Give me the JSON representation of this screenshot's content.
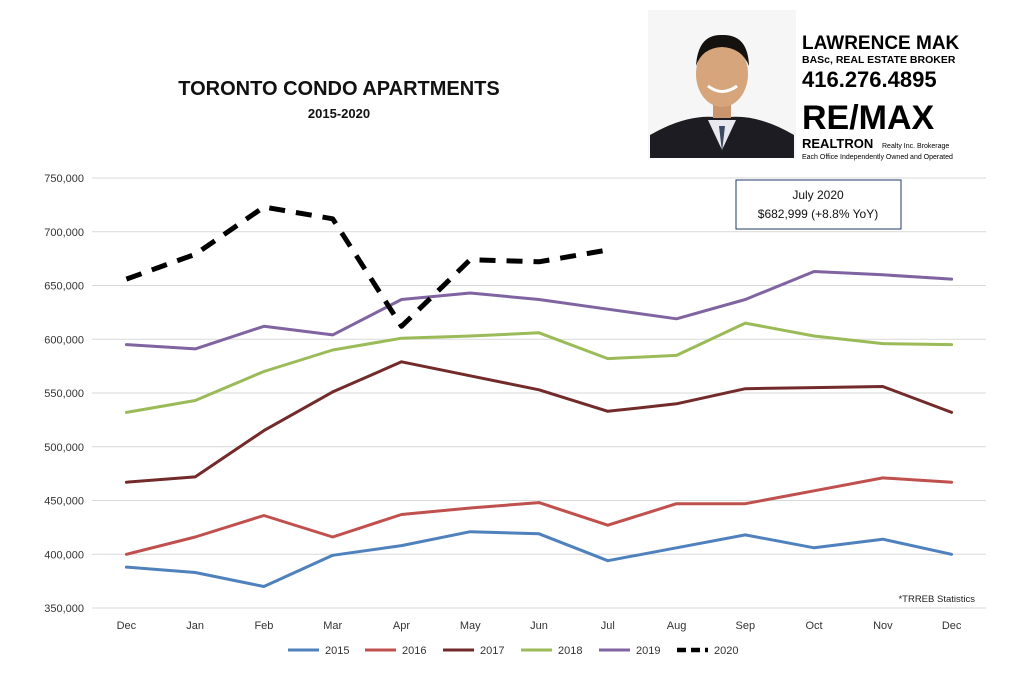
{
  "chart_data": {
    "type": "line",
    "title": "TORONTO CONDO APARTMENTS",
    "subtitle": "2015-2020",
    "categories": [
      "Dec",
      "Jan",
      "Feb",
      "Mar",
      "Apr",
      "May",
      "Jun",
      "Jul",
      "Aug",
      "Sep",
      "Oct",
      "Nov",
      "Dec"
    ],
    "ylim": [
      350000,
      750000
    ],
    "yticks": [
      "350,000",
      "400,000",
      "450,000",
      "500,000",
      "550,000",
      "600,000",
      "650,000",
      "700,000",
      "750,000"
    ],
    "grid": true,
    "legend_position": "bottom",
    "series": [
      {
        "name": "2015",
        "color": "#4f81bd",
        "dashed": false,
        "values": [
          388000,
          383000,
          370000,
          399000,
          408000,
          421000,
          419000,
          394000,
          406000,
          418000,
          406000,
          414000,
          400000
        ]
      },
      {
        "name": "2016",
        "color": "#c0504d",
        "dashed": false,
        "values": [
          400000,
          416000,
          436000,
          416000,
          437000,
          443000,
          448000,
          427000,
          447000,
          447000,
          459000,
          471000,
          467000
        ]
      },
      {
        "name": "2017",
        "color": "#722b2a",
        "dashed": false,
        "values": [
          467000,
          472000,
          515000,
          551000,
          579000,
          566000,
          553000,
          533000,
          540000,
          554000,
          555000,
          556000,
          532000
        ]
      },
      {
        "name": "2018",
        "color": "#9bbb59",
        "dashed": false,
        "values": [
          532000,
          543000,
          570000,
          590000,
          601000,
          603000,
          606000,
          582000,
          585000,
          615000,
          603000,
          596000,
          595000
        ]
      },
      {
        "name": "2019",
        "color": "#8064a2",
        "dashed": false,
        "values": [
          595000,
          591000,
          612000,
          604000,
          637000,
          643000,
          637000,
          628000,
          619000,
          637000,
          663000,
          660000,
          656000
        ]
      },
      {
        "name": "2020",
        "color": "#000000",
        "dashed": true,
        "values": [
          656000,
          679000,
          723000,
          712000,
          612000,
          674000,
          672000,
          682999,
          null,
          null,
          null,
          null,
          null
        ]
      }
    ],
    "callout": {
      "line1": "July 2020",
      "line2": "$682,999  (+8.8% YoY)"
    },
    "source_note": "*TRREB Statistics"
  },
  "agent": {
    "name": "LAWRENCE MAK",
    "credentials": "BASc, REAL ESTATE BROKER",
    "phone": "416.276.4895",
    "brand": "RE/MAX",
    "office": "REALTRON",
    "office_suffix": "Realty Inc. Brokerage",
    "disclaimer": "Each Office Independently Owned and Operated"
  }
}
